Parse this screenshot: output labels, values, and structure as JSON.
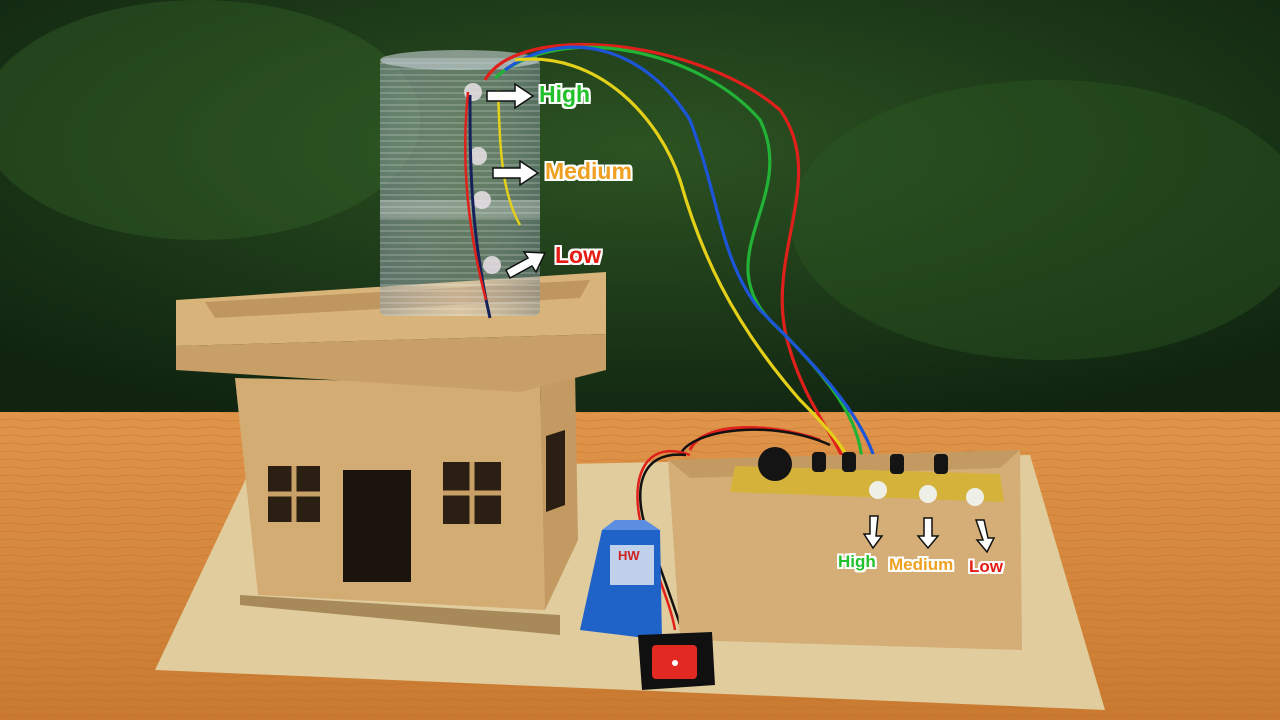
{
  "labels": {
    "tank_high": "High",
    "tank_medium": "Medium",
    "tank_low": "Low",
    "led_high": "High",
    "led_medium": "Medium",
    "led_low": "Low"
  },
  "battery_text": "HW",
  "colors": {
    "high": "#22c02a",
    "medium": "#f0a020",
    "low": "#e41c14",
    "cardboard": "#d4b07a",
    "table": "#d98a3e",
    "background": "#1f3f1a"
  }
}
